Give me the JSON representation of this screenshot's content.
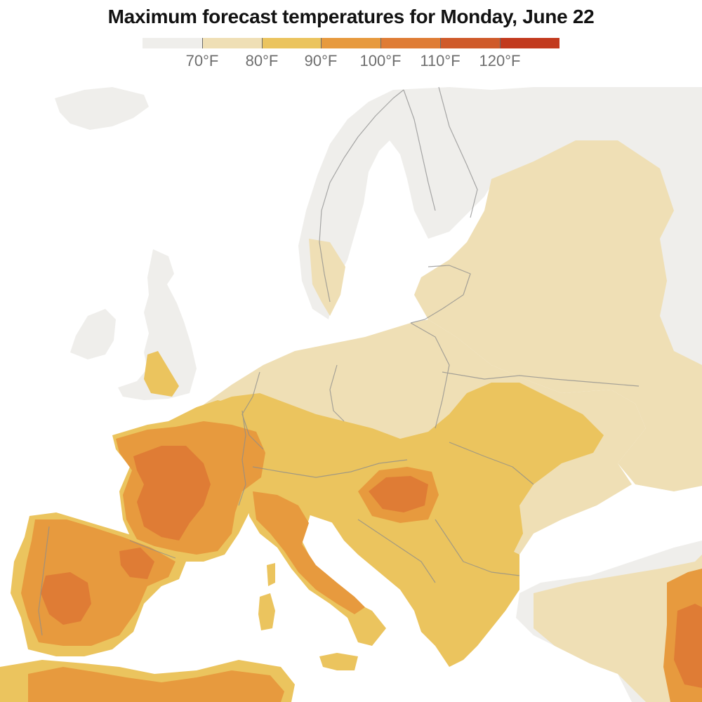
{
  "title": "Maximum forecast temperatures for Monday, June 22",
  "legend": {
    "colors": [
      "#efeeeb",
      "#efdfb5",
      "#ebc45e",
      "#e79a3e",
      "#df7c35",
      "#cf5a2a",
      "#c23a1e"
    ],
    "thresholds": [
      70,
      80,
      90,
      100,
      110,
      120
    ],
    "labels": [
      "70°F",
      "80°F",
      "90°F",
      "100°F",
      "110°F",
      "120°F"
    ]
  },
  "map": {
    "region": "Europe",
    "colors": {
      "water": "#ffffff",
      "below_70": "#efeeeb",
      "t70_80": "#efdfb5",
      "t80_90": "#ebc45e",
      "t90_100": "#e79a3e",
      "t100_110": "#df7c35",
      "border": "#8c8c8c"
    }
  }
}
